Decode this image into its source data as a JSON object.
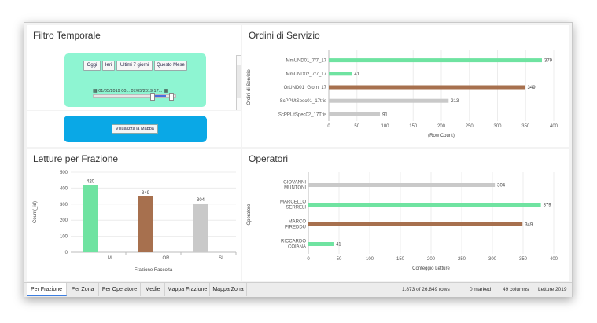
{
  "filter_panel": {
    "title": "Filtro Temporale",
    "quick_buttons": [
      "Oggi",
      "Ieri",
      "Ultimi 7 giorni",
      "Questo Mese"
    ],
    "range_label": "01/05/2019 00... 07/05/2019 17...",
    "map_button": "Visualizza la Mappa"
  },
  "orders_panel": {
    "title": "Ordini di Servizio"
  },
  "readings_panel": {
    "title": "Letture per Frazione"
  },
  "operators_panel": {
    "title": "Operatori"
  },
  "colors": {
    "green": "#6fe3a1",
    "brown": "#a7704e",
    "gray": "#c9c9c9",
    "tab_active": "#3b7de0"
  },
  "chart_data": [
    {
      "type": "bar",
      "orientation": "horizontal",
      "title": "Ordini di Servizio",
      "ylabel": "Ordini di Servizio",
      "xlabel": "(Row Count)",
      "categories": [
        "MmUND01_7/7_17",
        "MmUND02_7/7_17",
        "OrUND01_Giorn_17",
        "ScPPUtSpec01_17tris",
        "ScPPUtSpec02_17Tris"
      ],
      "values": [
        379,
        41,
        349,
        213,
        91
      ],
      "bar_colors": [
        "#6fe3a1",
        "#6fe3a1",
        "#a7704e",
        "#c9c9c9",
        "#c9c9c9"
      ],
      "xlim": [
        0,
        400
      ],
      "xticks": [
        0,
        50,
        100,
        150,
        200,
        250,
        300,
        350,
        400
      ],
      "grid": true
    },
    {
      "type": "bar",
      "orientation": "vertical",
      "title": "Letture per Frazione",
      "xlabel": "Frazione Raccolta",
      "ylabel": "Count(_id)",
      "categories": [
        "ML",
        "OR",
        "SI"
      ],
      "values": [
        420,
        349,
        304
      ],
      "bar_colors": [
        "#6fe3a1",
        "#a7704e",
        "#c9c9c9"
      ],
      "ylim": [
        0,
        500
      ],
      "yticks": [
        0,
        100,
        200,
        300,
        400,
        500
      ],
      "grid": true
    },
    {
      "type": "bar",
      "orientation": "horizontal",
      "title": "Operatori",
      "ylabel": "Operatore",
      "xlabel": "Conteggio Letture",
      "categories": [
        "GIOVANNI MUNTONI",
        "MARCELLO SERRELI",
        "MARCO PIREDDU",
        "RICCARDO COIANA"
      ],
      "values": [
        304,
        379,
        349,
        41
      ],
      "bar_colors": [
        "#c9c9c9",
        "#6fe3a1",
        "#a7704e",
        "#6fe3a1"
      ],
      "xlim": [
        0,
        400
      ],
      "xticks": [
        0,
        50,
        100,
        150,
        200,
        250,
        300,
        350,
        400
      ],
      "grid": true
    }
  ],
  "tabs": [
    "Per Frazione",
    "Per Zona",
    "Per Operatore",
    "Medie",
    "Mappa Frazione",
    "Mappa Zona"
  ],
  "active_tab": "Per Frazione",
  "status": {
    "rows": "1.873 of 26.849 rows",
    "marked": "0 marked",
    "columns": "49 columns",
    "page_name": "Letture 2019"
  }
}
